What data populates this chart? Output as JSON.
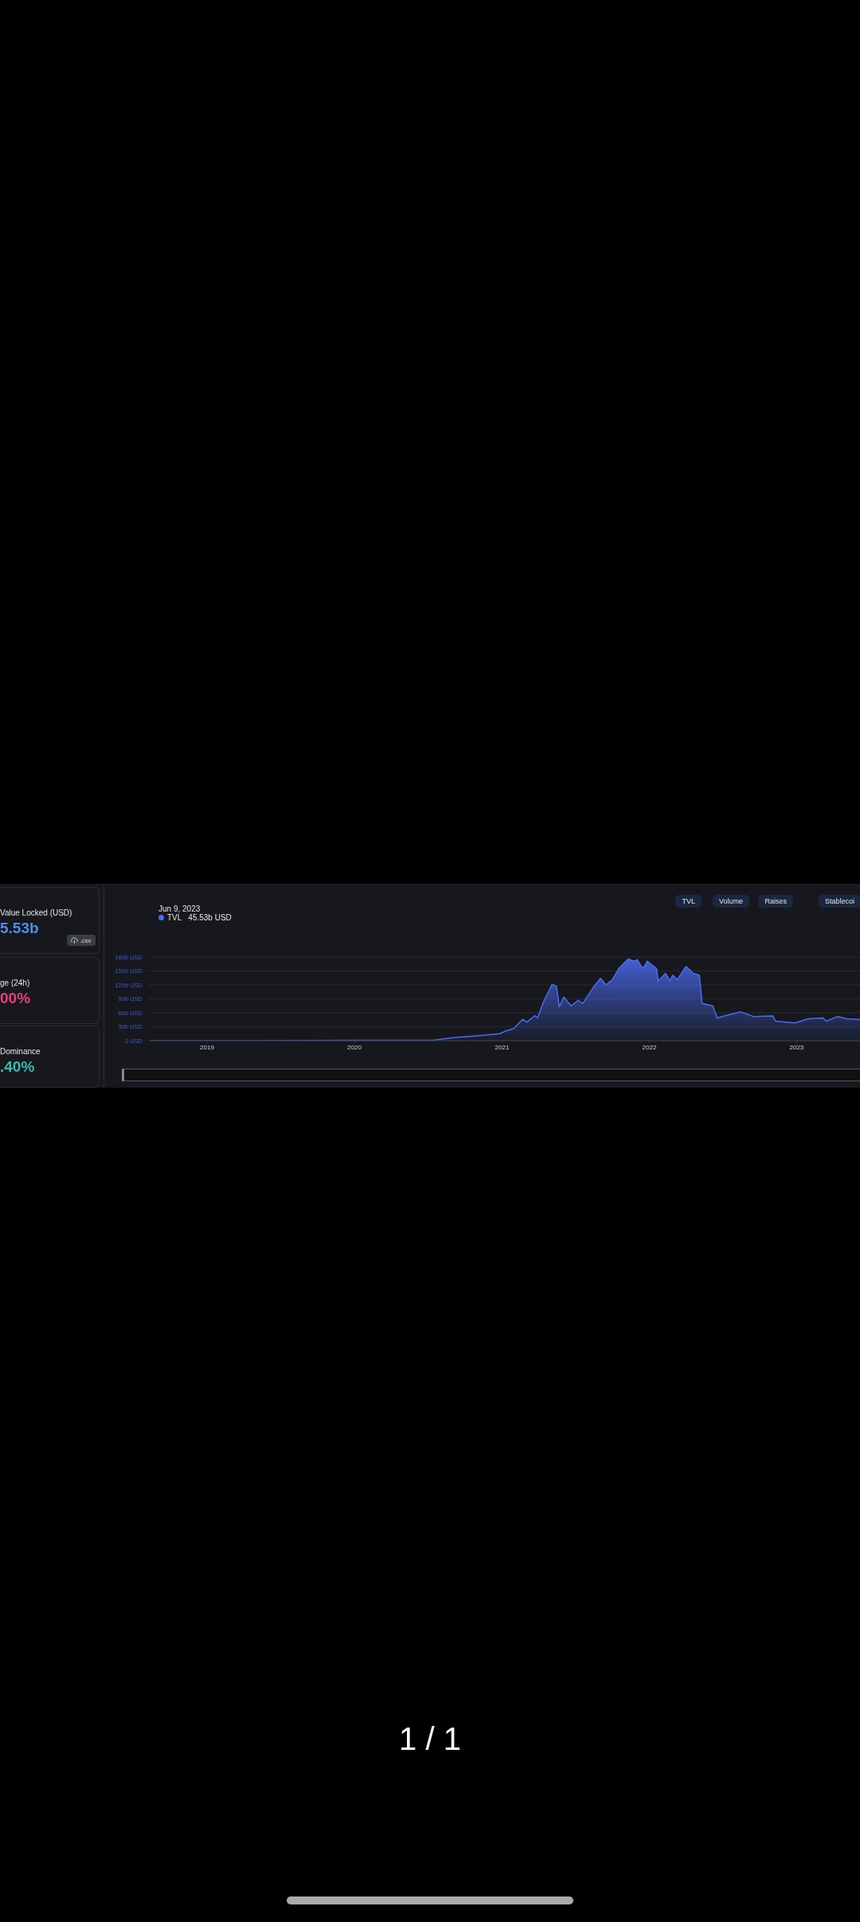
{
  "chart_data": {
    "type": "area",
    "x": [
      "2018-08-15",
      "2019-01-01",
      "2019-06-01",
      "2020-01-01",
      "2020-04-01",
      "2020-07-13",
      "2020-09-06",
      "2020-10-23",
      "2020-12-27",
      "2021-01-11",
      "2021-01-30",
      "2021-02-21",
      "2021-03-04",
      "2021-03-23",
      "2021-03-30",
      "2021-04-14",
      "2021-05-05",
      "2021-05-16",
      "2021-05-23",
      "2021-06-03",
      "2021-06-21",
      "2021-07-09",
      "2021-07-20",
      "2021-08-14",
      "2021-09-02",
      "2021-09-16",
      "2021-10-01",
      "2021-10-19",
      "2021-11-10",
      "2021-11-24",
      "2021-12-02",
      "2021-12-16",
      "2021-12-27",
      "2022-01-19",
      "2022-01-23",
      "2022-02-10",
      "2022-02-21",
      "2022-02-28",
      "2022-03-11",
      "2022-04-02",
      "2022-04-20",
      "2022-05-05",
      "2022-05-12",
      "2022-06-07",
      "2022-06-18",
      "2022-07-09",
      "2022-08-15",
      "2022-09-16",
      "2022-11-03",
      "2022-11-10",
      "2022-12-28",
      "2023-01-30",
      "2023-03-08",
      "2023-03-15",
      "2023-04-13",
      "2023-05-05",
      "2023-06-09"
    ],
    "series": [
      {
        "name": "TVL",
        "color": "#4a6cf0",
        "values": [
          0,
          0,
          0,
          1,
          1,
          1,
          7,
          10,
          15,
          21,
          26,
          46,
          40,
          54,
          49,
          84,
          121,
          117,
          73,
          94,
          75,
          87,
          80,
          113,
          134,
          120,
          131,
          157,
          176,
          171,
          174,
          155,
          171,
          155,
          128,
          145,
          129,
          141,
          131,
          160,
          145,
          141,
          80,
          75,
          49,
          54,
          62,
          52,
          53,
          42,
          38,
          47,
          49,
          42,
          52,
          47,
          45.53
        ]
      }
    ],
    "xlim": [
      "2018-08-10",
      "2023-06-09"
    ],
    "xticks": [
      "2019",
      "2020",
      "2021",
      "2022",
      "2023"
    ],
    "ylim": [
      0,
      180
    ],
    "yticks": [
      {
        "value": 0,
        "label": "0 USD"
      },
      {
        "value": 30,
        "label": "30b USD"
      },
      {
        "value": 60,
        "label": "60b USD"
      },
      {
        "value": 90,
        "label": "90b USD"
      },
      {
        "value": 120,
        "label": "120b USD"
      },
      {
        "value": 150,
        "label": "150b USD"
      },
      {
        "value": 180,
        "label": "180b USD"
      }
    ],
    "grid": "y",
    "legend": "top left",
    "annotations": [
      "Value Locked (USD)",
      "5.53b",
      ".csv",
      "ge (24h)",
      "00%",
      "Dominance",
      ".40%",
      "TVL",
      "Volume",
      "Raises",
      "Stablecoi",
      "Jun 9, 2023",
      "45.53b USD",
      "1 / 1"
    ]
  }
}
